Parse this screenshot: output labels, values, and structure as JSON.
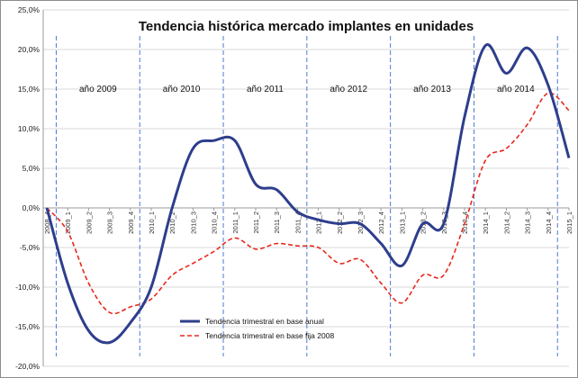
{
  "chart_data": {
    "type": "line",
    "title": "Tendencia histórica mercado implantes en unidades",
    "xlabel": "",
    "ylabel": "",
    "ylim": [
      -20,
      25
    ],
    "ytick_step": 5,
    "ytick_labels": [
      "-20,0%",
      "-15,0%",
      "-10,0%",
      "-5,0%",
      "0,0%",
      "5,0%",
      "10,0%",
      "15,0%",
      "20,0%",
      "25,0%"
    ],
    "grid": true,
    "legend_position": "bottom-center",
    "categories": [
      "2008_4",
      "2009_1",
      "2009_2",
      "2009_3",
      "2009_4",
      "2010_1",
      "2010_2",
      "2010_3",
      "2010_4",
      "2011_1",
      "2011_2",
      "2011_3",
      "2011_4",
      "2012_1",
      "2012_2",
      "2012_3",
      "2012_4",
      "2013_1",
      "2013_2",
      "2013_3",
      "2013_4",
      "2014_1",
      "2014_2",
      "2014_3",
      "2014_4",
      "2015_1"
    ],
    "series": [
      {
        "name": "Tendencia trimestral en base anual",
        "color": "#2e3e8c",
        "style": "solid",
        "values": [
          0.0,
          -9.5,
          -15.5,
          -17.0,
          -14.5,
          -10.0,
          0.0,
          7.5,
          8.5,
          8.5,
          3.0,
          2.3,
          -0.5,
          -1.5,
          -2.0,
          -2.0,
          -4.5,
          -7.3,
          -2.0,
          -2.0,
          11.5,
          20.5,
          17.0,
          20.2,
          15.5,
          6.3
        ]
      },
      {
        "name": "Tendencia trimestral en base fija 2008",
        "color": "#e8281e",
        "style": "dashed",
        "values": [
          0.0,
          -3.0,
          -9.5,
          -13.2,
          -12.5,
          -11.5,
          -8.5,
          -7.0,
          -5.5,
          -3.8,
          -5.2,
          -4.5,
          -4.8,
          -5.0,
          -7.0,
          -6.5,
          -9.5,
          -12.0,
          -8.5,
          -8.5,
          -2.0,
          6.0,
          7.5,
          10.5,
          14.5,
          12.3
        ]
      }
    ],
    "period_labels": [
      "año 2009",
      "año 2010",
      "año 2011",
      "año 2012",
      "año 2013",
      "año 2014"
    ]
  }
}
